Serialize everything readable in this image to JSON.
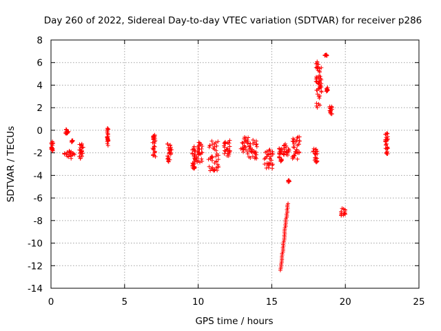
{
  "chart_data": {
    "type": "scatter",
    "title": "Day 260 of 2022, Sidereal Day-to-day VTEC variation (SDTVAR) for receiver p286",
    "xlabel": "GPS time / hours",
    "ylabel": "SDTVAR / TECUs",
    "xlim": [
      0,
      25
    ],
    "ylim": [
      -14,
      8
    ],
    "xticks": [
      0,
      5,
      10,
      15,
      20,
      25
    ],
    "yticks": [
      -14,
      -12,
      -10,
      -8,
      -6,
      -4,
      -2,
      0,
      2,
      4,
      6,
      8
    ],
    "grid": true,
    "marker": "+",
    "color": "#ff0000",
    "clusters": [
      {
        "x": [
          0.0,
          0.15
        ],
        "y": [
          -2.0,
          -1.0
        ]
      },
      {
        "x": [
          0.9,
          1.2
        ],
        "y": [
          -0.3,
          0.1
        ]
      },
      {
        "x": [
          0.9,
          1.6
        ],
        "y": [
          -2.5,
          -1.8
        ]
      },
      {
        "x": [
          1.4,
          1.5
        ],
        "y": [
          -1.1,
          -0.9
        ]
      },
      {
        "x": [
          1.9,
          2.2
        ],
        "y": [
          -2.5,
          -1.1
        ]
      },
      {
        "x": [
          3.8,
          3.9
        ],
        "y": [
          -1.4,
          0.2
        ]
      },
      {
        "x": [
          6.9,
          7.1
        ],
        "y": [
          -2.4,
          -0.4
        ]
      },
      {
        "x": [
          7.9,
          8.2
        ],
        "y": [
          -2.8,
          -1.2
        ]
      },
      {
        "x": [
          9.6,
          9.8
        ],
        "y": [
          -3.5,
          -1.4
        ]
      },
      {
        "x": [
          9.9,
          10.3
        ],
        "y": [
          -2.9,
          -1.0
        ]
      },
      {
        "x": [
          10.7,
          11.4
        ],
        "y": [
          -3.6,
          -0.9
        ]
      },
      {
        "x": [
          11.7,
          12.2
        ],
        "y": [
          -2.3,
          -0.9
        ]
      },
      {
        "x": [
          12.9,
          13.4
        ],
        "y": [
          -2.1,
          -0.6
        ]
      },
      {
        "x": [
          13.4,
          14.0
        ],
        "y": [
          -2.6,
          -0.8
        ]
      },
      {
        "x": [
          14.5,
          15.1
        ],
        "y": [
          -3.4,
          -1.6
        ]
      },
      {
        "x": [
          15.5,
          15.7
        ],
        "y": [
          -2.8,
          -1.5
        ]
      },
      {
        "x": [
          15.8,
          16.2
        ],
        "y": [
          -2.2,
          -1.1
        ]
      },
      {
        "x": [
          16.1,
          16.2
        ],
        "y": [
          -4.6,
          -4.4
        ]
      },
      {
        "x": [
          16.4,
          16.9
        ],
        "y": [
          -2.6,
          -0.5
        ]
      },
      {
        "x": [
          17.8,
          18.1
        ],
        "y": [
          -2.9,
          -1.6
        ]
      },
      {
        "x": [
          18.0,
          18.4
        ],
        "y": [
          2.0,
          6.2
        ]
      },
      {
        "x": [
          18.6,
          18.8
        ],
        "y": [
          6.6,
          6.7
        ]
      },
      {
        "x": [
          18.7,
          18.8
        ],
        "y": [
          3.4,
          3.8
        ]
      },
      {
        "x": [
          18.9,
          19.1
        ],
        "y": [
          1.4,
          2.2
        ]
      },
      {
        "x": [
          19.7,
          20.0
        ],
        "y": [
          -7.6,
          -6.9
        ]
      },
      {
        "x": [
          22.7,
          22.9
        ],
        "y": [
          -2.1,
          -0.2
        ]
      }
    ],
    "streak": {
      "x": [
        15.6,
        16.1
      ],
      "y": [
        -12.4,
        -6.5
      ]
    }
  }
}
